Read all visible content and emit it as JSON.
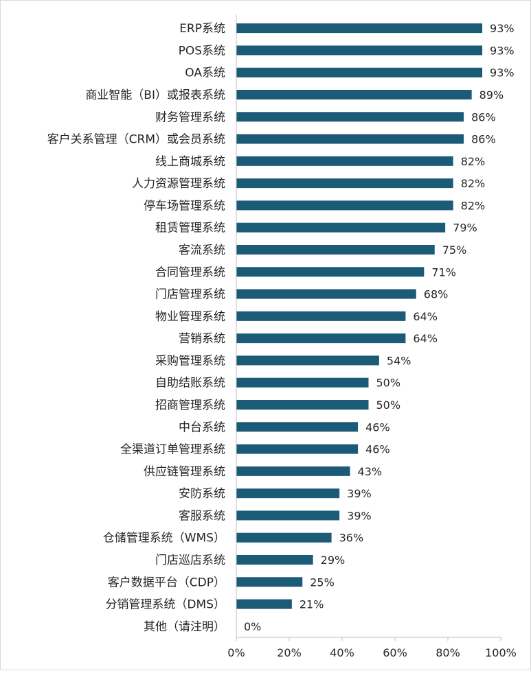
{
  "chart_data": {
    "type": "bar",
    "orientation": "horizontal",
    "title": "",
    "xlabel": "",
    "ylabel": "",
    "xlim": [
      0,
      100
    ],
    "x_ticks": [
      "0%",
      "20%",
      "40%",
      "60%",
      "80%",
      "100%"
    ],
    "grid": false,
    "legend": "none",
    "bar_color": "#1b5b78",
    "categories": [
      "ERP系统",
      "POS系统",
      "OA系统",
      "商业智能（BI）或报表系统",
      "财务管理系统",
      "客户关系管理（CRM）或会员系统",
      "线上商城系统",
      "人力资源管理系统",
      "停车场管理系统",
      "租赁管理系统",
      "客流系统",
      "合同管理系统",
      "门店管理系统",
      "物业管理系统",
      "营销系统",
      "采购管理系统",
      "自助结账系统",
      "招商管理系统",
      "中台系统",
      "全渠道订单管理系统",
      "供应链管理系统",
      "安防系统",
      "客服系统",
      "仓储管理系统（WMS）",
      "门店巡店系统",
      "客户数据平台（CDP）",
      "分销管理系统（DMS）",
      "其他（请注明）"
    ],
    "values": [
      93,
      93,
      93,
      89,
      86,
      86,
      82,
      82,
      82,
      79,
      75,
      71,
      68,
      64,
      64,
      54,
      50,
      50,
      46,
      46,
      43,
      39,
      39,
      36,
      29,
      25,
      21,
      0
    ],
    "value_labels": [
      "93%",
      "93%",
      "93%",
      "89%",
      "86%",
      "86%",
      "82%",
      "82%",
      "82%",
      "79%",
      "75%",
      "71%",
      "68%",
      "64%",
      "64%",
      "54%",
      "50%",
      "50%",
      "46%",
      "46%",
      "43%",
      "39%",
      "39%",
      "36%",
      "29%",
      "25%",
      "21%",
      "0%"
    ]
  }
}
